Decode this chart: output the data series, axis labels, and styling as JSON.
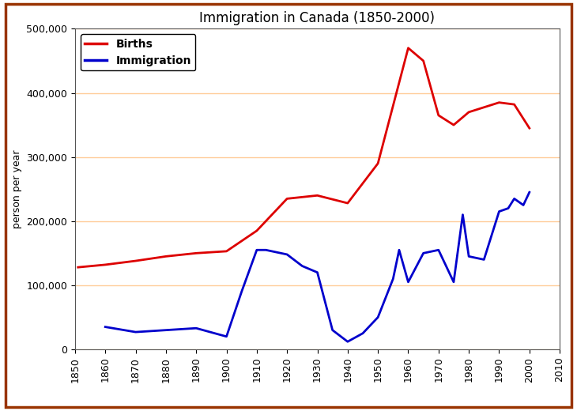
{
  "title": "Immigration in Canada (1850-2000)",
  "ylabel": "person per year",
  "xlim": [
    1850,
    2010
  ],
  "ylim": [
    0,
    500000
  ],
  "xticks": [
    1850,
    1860,
    1870,
    1880,
    1890,
    1900,
    1910,
    1920,
    1930,
    1940,
    1950,
    1960,
    1970,
    1980,
    1990,
    2000,
    2010
  ],
  "yticks": [
    0,
    100000,
    200000,
    300000,
    400000,
    500000
  ],
  "births_x": [
    1851,
    1860,
    1870,
    1880,
    1890,
    1900,
    1910,
    1920,
    1930,
    1940,
    1950,
    1960,
    1965,
    1970,
    1975,
    1980,
    1990,
    1995,
    2000
  ],
  "births_y": [
    128000,
    132000,
    138000,
    145000,
    150000,
    153000,
    185000,
    235000,
    240000,
    228000,
    290000,
    470000,
    450000,
    365000,
    350000,
    370000,
    385000,
    382000,
    345000
  ],
  "immig_x": [
    1860,
    1870,
    1880,
    1890,
    1900,
    1905,
    1910,
    1913,
    1920,
    1925,
    1930,
    1935,
    1940,
    1945,
    1950,
    1955,
    1957,
    1960,
    1965,
    1970,
    1975,
    1978,
    1980,
    1985,
    1990,
    1993,
    1995,
    1998,
    2000
  ],
  "immig_y": [
    35000,
    27000,
    30000,
    33000,
    20000,
    90000,
    155000,
    155000,
    148000,
    130000,
    120000,
    30000,
    12000,
    25000,
    50000,
    110000,
    155000,
    105000,
    150000,
    155000,
    105000,
    210000,
    145000,
    140000,
    215000,
    220000,
    235000,
    225000,
    245000
  ],
  "births_color": "#dd0000",
  "immig_color": "#0000cc",
  "grid_color": "#ffcc99",
  "background_color": "#ffffff",
  "outer_border_color": "#993300",
  "title_fontsize": 12,
  "legend_fontsize": 10,
  "tick_fontsize": 9,
  "ylabel_fontsize": 9
}
